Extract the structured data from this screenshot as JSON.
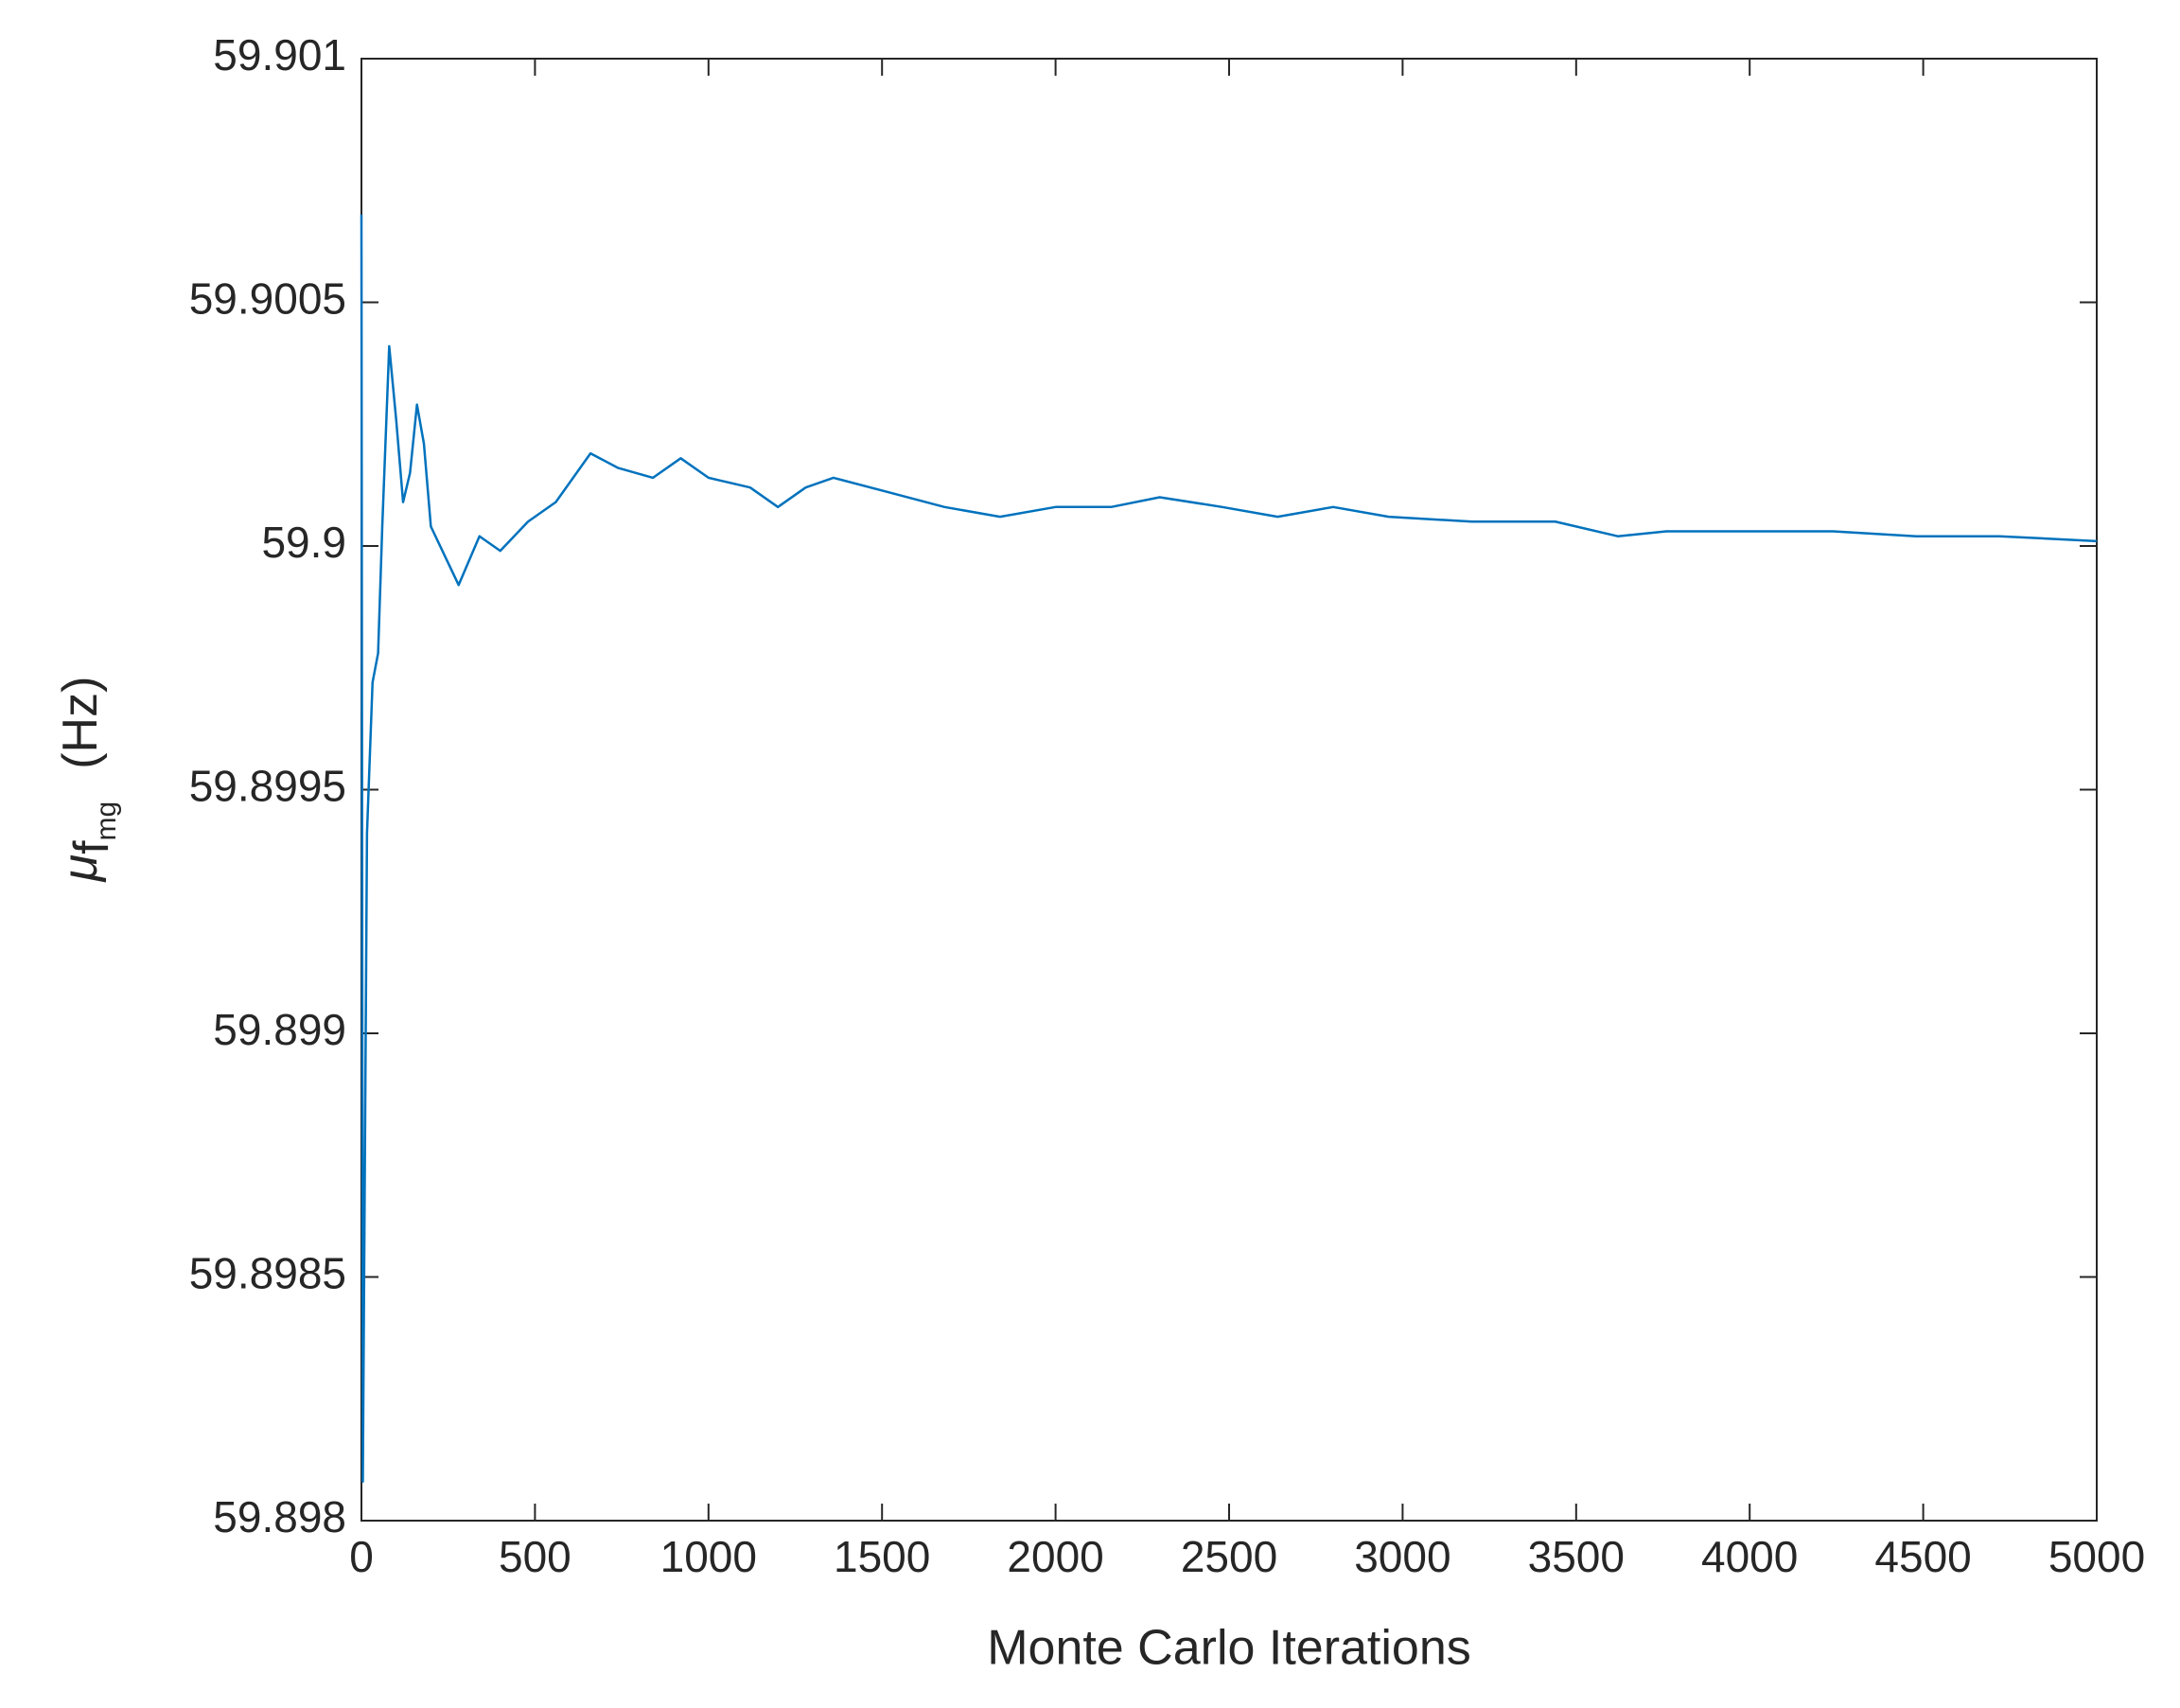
{
  "chart_data": {
    "type": "line",
    "x_label": "Monte Carlo Iterations",
    "y_label_symbol": "μ",
    "y_label_sub": "f",
    "y_label_subsub": "mg",
    "y_label_unit": "(Hz)",
    "x": [
      0,
      4,
      16,
      32,
      48,
      60,
      80,
      100,
      120,
      140,
      160,
      180,
      200,
      240,
      280,
      340,
      400,
      480,
      560,
      660,
      740,
      840,
      920,
      1000,
      1120,
      1200,
      1280,
      1360,
      1520,
      1680,
      1840,
      2000,
      2160,
      2300,
      2480,
      2640,
      2800,
      2960,
      3200,
      3440,
      3620,
      3760,
      4000,
      4240,
      4480,
      4720,
      5000
    ],
    "series": [
      {
        "color": "#0072bd",
        "values": [
          59.90068,
          59.89808,
          59.89941,
          59.89972,
          59.89978,
          59.90004,
          59.90041,
          59.90026,
          59.90009,
          59.90015,
          59.90029,
          59.90021,
          59.90004,
          59.89998,
          59.89992,
          59.90002,
          59.89999,
          59.90005,
          59.90009,
          59.90019,
          59.90016,
          59.90014,
          59.90018,
          59.90014,
          59.90012,
          59.90008,
          59.90012,
          59.90014,
          59.90011,
          59.90008,
          59.90006,
          59.90008,
          59.90008,
          59.9001,
          59.90008,
          59.90006,
          59.90008,
          59.90006,
          59.90005,
          59.90005,
          59.90002,
          59.90003,
          59.90003,
          59.90003,
          59.90002,
          59.90002,
          59.90001
        ]
      }
    ],
    "xlim": [
      0,
      5000
    ],
    "xticks": [
      0,
      500,
      1000,
      1500,
      2000,
      2500,
      3000,
      3500,
      4000,
      4500,
      5000
    ],
    "ylim": [
      59.898,
      59.901
    ],
    "yticks": [
      59.898,
      59.8985,
      59.899,
      59.8995,
      59.9,
      59.9005,
      59.901
    ],
    "grid": false
  }
}
